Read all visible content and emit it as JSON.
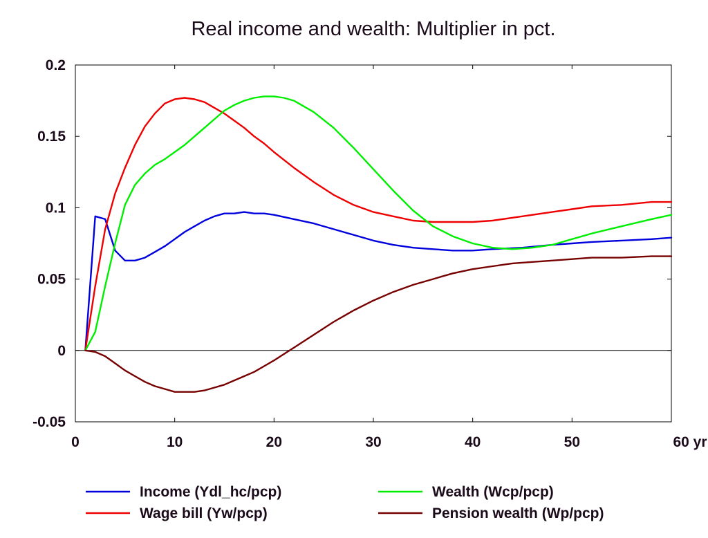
{
  "chart_data": {
    "type": "line",
    "title": "Real income and wealth: Multiplier in pct.",
    "xlabel": "",
    "ylabel": "",
    "xlim": [
      0,
      60
    ],
    "ylim": [
      -0.05,
      0.2
    ],
    "x_ticks": [
      {
        "value": 0,
        "label": "0"
      },
      {
        "value": 10,
        "label": "10"
      },
      {
        "value": 20,
        "label": "20"
      },
      {
        "value": 30,
        "label": "30"
      },
      {
        "value": 40,
        "label": "40"
      },
      {
        "value": 50,
        "label": "50"
      },
      {
        "value": 60,
        "label": "60 yr"
      }
    ],
    "y_ticks": [
      {
        "value": 0.2,
        "label": "0.2"
      },
      {
        "value": 0.15,
        "label": "0.15"
      },
      {
        "value": 0.1,
        "label": "0.1"
      },
      {
        "value": 0.05,
        "label": "0.05"
      },
      {
        "value": 0,
        "label": "0"
      },
      {
        "value": -0.05,
        "label": "-0.05"
      }
    ],
    "zero_line": true,
    "grid": false,
    "legend_position": "bottom",
    "series": [
      {
        "name": "Income (Ydl_hc/pcp)",
        "color": "#0000dd",
        "points": [
          [
            1,
            0
          ],
          [
            2,
            0.094
          ],
          [
            3,
            0.092
          ],
          [
            4,
            0.07
          ],
          [
            5,
            0.063
          ],
          [
            6,
            0.063
          ],
          [
            7,
            0.065
          ],
          [
            8,
            0.069
          ],
          [
            9,
            0.073
          ],
          [
            10,
            0.078
          ],
          [
            11,
            0.083
          ],
          [
            12,
            0.087
          ],
          [
            13,
            0.091
          ],
          [
            14,
            0.094
          ],
          [
            15,
            0.096
          ],
          [
            16,
            0.096
          ],
          [
            17,
            0.097
          ],
          [
            18,
            0.096
          ],
          [
            19,
            0.096
          ],
          [
            20,
            0.095
          ],
          [
            22,
            0.092
          ],
          [
            24,
            0.089
          ],
          [
            26,
            0.085
          ],
          [
            28,
            0.081
          ],
          [
            30,
            0.077
          ],
          [
            32,
            0.074
          ],
          [
            34,
            0.072
          ],
          [
            36,
            0.071
          ],
          [
            38,
            0.07
          ],
          [
            40,
            0.07
          ],
          [
            42,
            0.071
          ],
          [
            45,
            0.072
          ],
          [
            48,
            0.074
          ],
          [
            50,
            0.075
          ],
          [
            52,
            0.076
          ],
          [
            55,
            0.077
          ],
          [
            58,
            0.078
          ],
          [
            60,
            0.079
          ]
        ]
      },
      {
        "name": "Wage bill (Yw/pcp)",
        "color": "#ee0000",
        "points": [
          [
            1,
            0
          ],
          [
            2,
            0.045
          ],
          [
            3,
            0.085
          ],
          [
            4,
            0.11
          ],
          [
            5,
            0.128
          ],
          [
            6,
            0.144
          ],
          [
            7,
            0.157
          ],
          [
            8,
            0.166
          ],
          [
            9,
            0.173
          ],
          [
            10,
            0.176
          ],
          [
            11,
            0.177
          ],
          [
            12,
            0.176
          ],
          [
            13,
            0.174
          ],
          [
            14,
            0.17
          ],
          [
            15,
            0.166
          ],
          [
            16,
            0.161
          ],
          [
            17,
            0.156
          ],
          [
            18,
            0.15
          ],
          [
            19,
            0.145
          ],
          [
            20,
            0.139
          ],
          [
            22,
            0.128
          ],
          [
            24,
            0.118
          ],
          [
            26,
            0.109
          ],
          [
            28,
            0.102
          ],
          [
            30,
            0.097
          ],
          [
            32,
            0.094
          ],
          [
            34,
            0.091
          ],
          [
            36,
            0.09
          ],
          [
            38,
            0.09
          ],
          [
            40,
            0.09
          ],
          [
            42,
            0.091
          ],
          [
            45,
            0.094
          ],
          [
            48,
            0.097
          ],
          [
            50,
            0.099
          ],
          [
            52,
            0.101
          ],
          [
            55,
            0.102
          ],
          [
            58,
            0.104
          ],
          [
            60,
            0.104
          ]
        ]
      },
      {
        "name": "Wealth (Wcp/pcp)",
        "color": "#00ee00",
        "points": [
          [
            1,
            0
          ],
          [
            2,
            0.013
          ],
          [
            3,
            0.045
          ],
          [
            4,
            0.075
          ],
          [
            5,
            0.102
          ],
          [
            6,
            0.116
          ],
          [
            7,
            0.124
          ],
          [
            8,
            0.13
          ],
          [
            9,
            0.134
          ],
          [
            10,
            0.139
          ],
          [
            11,
            0.144
          ],
          [
            12,
            0.15
          ],
          [
            13,
            0.156
          ],
          [
            14,
            0.162
          ],
          [
            15,
            0.168
          ],
          [
            16,
            0.172
          ],
          [
            17,
            0.175
          ],
          [
            18,
            0.177
          ],
          [
            19,
            0.178
          ],
          [
            20,
            0.178
          ],
          [
            21,
            0.177
          ],
          [
            22,
            0.175
          ],
          [
            24,
            0.167
          ],
          [
            26,
            0.156
          ],
          [
            28,
            0.142
          ],
          [
            30,
            0.127
          ],
          [
            32,
            0.112
          ],
          [
            34,
            0.098
          ],
          [
            36,
            0.087
          ],
          [
            38,
            0.08
          ],
          [
            40,
            0.075
          ],
          [
            42,
            0.072
          ],
          [
            44,
            0.071
          ],
          [
            46,
            0.072
          ],
          [
            48,
            0.074
          ],
          [
            50,
            0.078
          ],
          [
            52,
            0.082
          ],
          [
            55,
            0.087
          ],
          [
            58,
            0.092
          ],
          [
            60,
            0.095
          ]
        ]
      },
      {
        "name": "Pension wealth (Wp/pcp)",
        "color": "#770000",
        "points": [
          [
            1,
            0
          ],
          [
            2,
            -0.001
          ],
          [
            3,
            -0.004
          ],
          [
            4,
            -0.009
          ],
          [
            5,
            -0.014
          ],
          [
            6,
            -0.018
          ],
          [
            7,
            -0.022
          ],
          [
            8,
            -0.025
          ],
          [
            9,
            -0.027
          ],
          [
            10,
            -0.029
          ],
          [
            11,
            -0.029
          ],
          [
            12,
            -0.029
          ],
          [
            13,
            -0.028
          ],
          [
            14,
            -0.026
          ],
          [
            15,
            -0.024
          ],
          [
            16,
            -0.021
          ],
          [
            17,
            -0.018
          ],
          [
            18,
            -0.015
          ],
          [
            19,
            -0.011
          ],
          [
            20,
            -0.007
          ],
          [
            22,
            0.002
          ],
          [
            24,
            0.011
          ],
          [
            26,
            0.02
          ],
          [
            28,
            0.028
          ],
          [
            30,
            0.035
          ],
          [
            32,
            0.041
          ],
          [
            34,
            0.046
          ],
          [
            36,
            0.05
          ],
          [
            38,
            0.054
          ],
          [
            40,
            0.057
          ],
          [
            42,
            0.059
          ],
          [
            44,
            0.061
          ],
          [
            46,
            0.062
          ],
          [
            48,
            0.063
          ],
          [
            50,
            0.064
          ],
          [
            52,
            0.065
          ],
          [
            55,
            0.065
          ],
          [
            58,
            0.066
          ],
          [
            60,
            0.066
          ]
        ]
      }
    ]
  }
}
